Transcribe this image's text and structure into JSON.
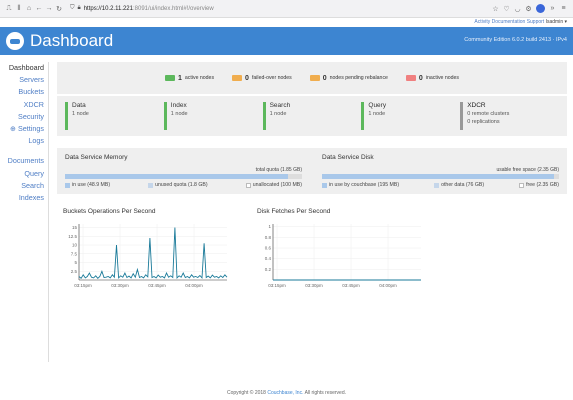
{
  "browser": {
    "url_host": "https://10.2.11.221",
    "url_path": ":8091/ui/index.html#!/overview"
  },
  "toplinks": {
    "activity": "Activity",
    "documentation": "Documentation",
    "support": "Support",
    "user": "Isadmin ▾"
  },
  "header": {
    "title": "Dashboard",
    "version": "Community Edition 6.0.2 build 2413 · IPv4"
  },
  "sidebar": {
    "items": [
      "Dashboard",
      "Servers",
      "Buckets",
      "XDCR",
      "Security",
      "Settings",
      "Logs",
      "Documents",
      "Query",
      "Search",
      "Indexes"
    ]
  },
  "stats": [
    {
      "value": "1",
      "label": "active nodes",
      "color": "#5cb85c"
    },
    {
      "value": "0",
      "label": "failed-over nodes",
      "color": "#f0ad4e"
    },
    {
      "value": "0",
      "label": "nodes pending rebalance",
      "color": "#f0ad4e"
    },
    {
      "value": "0",
      "label": "inactive nodes",
      "color": "#f08080"
    }
  ],
  "services": [
    {
      "name": "Data",
      "sub": "1 node"
    },
    {
      "name": "Index",
      "sub": "1 node"
    },
    {
      "name": "Search",
      "sub": "1 node"
    },
    {
      "name": "Query",
      "sub": "1 node"
    },
    {
      "name": "XDCR",
      "sub": "0 remote clusters",
      "sub2": "0 replications"
    }
  ],
  "memory": {
    "title": "Data Service Memory",
    "quota": "total quota (1.85 GB)",
    "fill_fraction": 0.94,
    "legend": [
      "in use (48.9 MB)",
      "unused quota (1.8 GB)",
      "unallocated (100 MB)"
    ]
  },
  "disk": {
    "title": "Data Service Disk",
    "quota": "usable free space (2.35 GB)",
    "fill_fraction": 0.98,
    "legend": [
      "in use by couchbase (195 MB)",
      "other data (76 GB)",
      "free (2.35 GB)"
    ]
  },
  "chart_data": [
    {
      "type": "line",
      "title": "Buckets Operations Per Second",
      "x_ticks": [
        "03:15pm",
        "03:30pm",
        "03:45pm",
        "04:00pm"
      ],
      "y_ticks": [
        "2.5",
        "5",
        "7.5",
        "10",
        "12.5",
        "15"
      ],
      "ylim": [
        0,
        16
      ],
      "values": [
        1,
        0.5,
        1.5,
        0.6,
        1,
        2,
        0.8,
        0.6,
        1.2,
        0.5,
        1,
        2.5,
        0.7,
        0.8,
        1,
        0.6,
        1.5,
        0.8,
        10,
        0.6,
        1.2,
        0.8,
        2,
        0.7,
        1.1,
        0.6,
        1.8,
        0.8,
        3,
        0.7,
        1,
        0.6,
        1.5,
        0.9,
        12,
        0.7,
        1,
        0.6,
        1.4,
        0.8,
        1,
        0.6,
        2,
        0.8,
        1.2,
        0.7,
        15,
        0.6,
        1.2,
        0.8,
        2,
        0.7,
        1,
        0.6,
        1.5,
        0.8,
        1,
        0.7,
        1.3,
        0.6,
        10.5,
        0.7,
        1.1,
        0.6,
        1.4,
        0.8,
        1,
        0.6,
        1.2,
        0.7,
        1.5,
        0.8
      ],
      "color": "#1a7a99"
    },
    {
      "type": "line",
      "title": "Disk Fetches Per Second",
      "x_ticks": [
        "03:15pm",
        "03:30pm",
        "03:45pm",
        "04:00pm"
      ],
      "y_ticks": [
        "0.2",
        "0.4",
        "0.6",
        "0.8",
        "1"
      ],
      "ylim": [
        0,
        1.05
      ],
      "values": [
        0,
        0,
        0,
        0,
        0,
        0,
        0,
        0,
        0,
        0,
        0,
        0,
        0,
        0,
        0,
        0
      ],
      "color": "#1a7a99"
    }
  ],
  "footer": {
    "prefix": "Copyright © 2018 ",
    "company": "Couchbase, Inc.",
    "suffix": " All rights reserved."
  }
}
